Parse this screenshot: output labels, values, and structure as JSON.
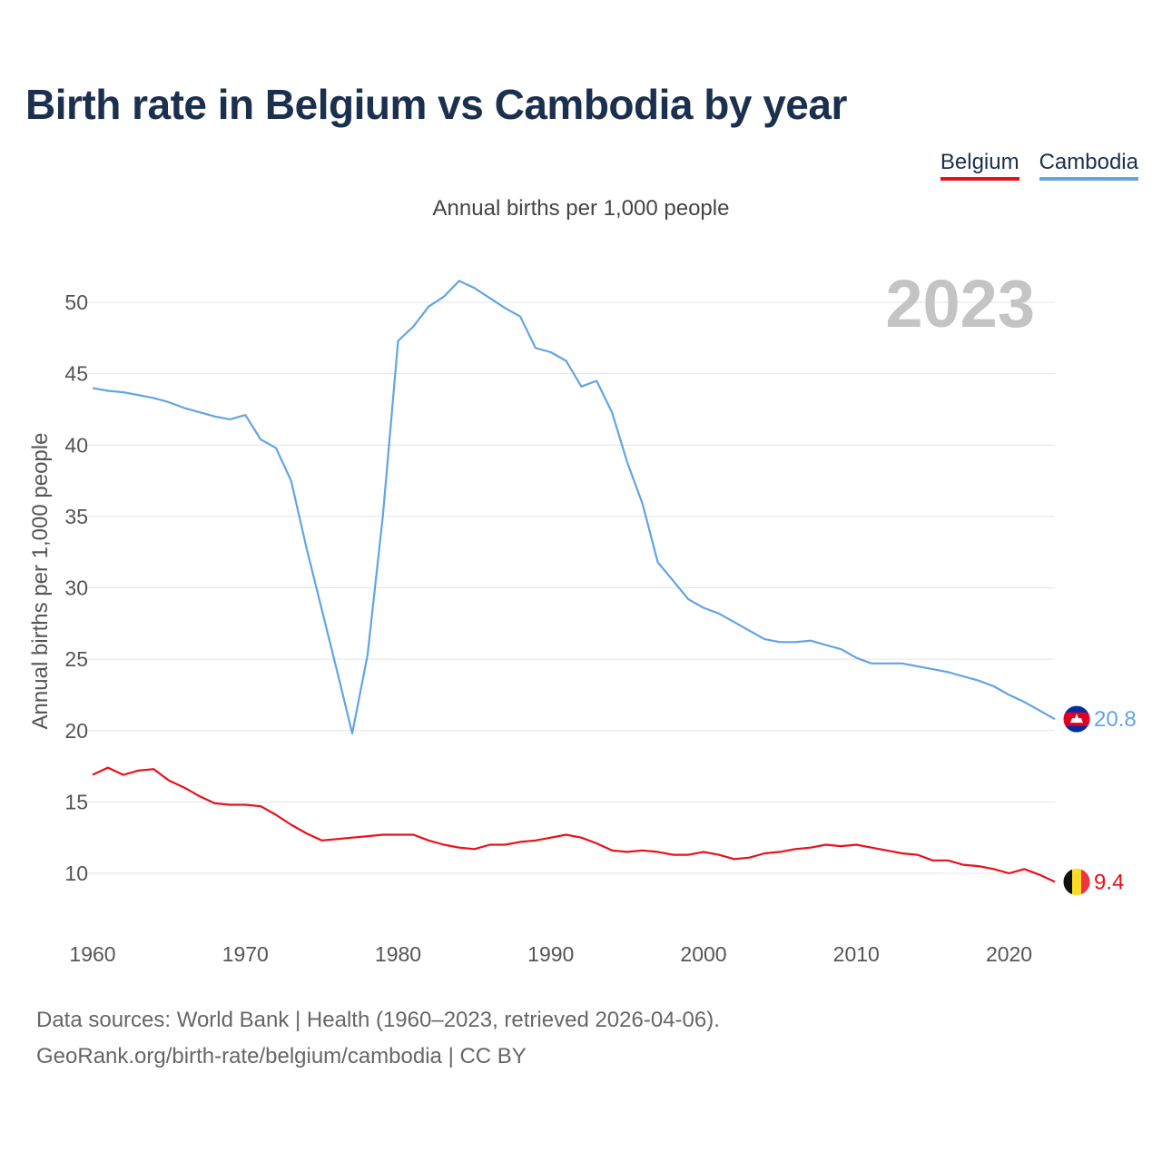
{
  "title": "Birth rate in Belgium vs Cambodia by year",
  "legend": {
    "belgium": "Belgium",
    "cambodia": "Cambodia"
  },
  "subtitle": "Annual births per 1,000 people",
  "year_label": "2023",
  "footer": {
    "line1": "Data sources: World Bank | Health (1960–2023, retrieved 2026-04-06).",
    "line2": "GeoRank.org/birth-rate/belgium/cambodia | CC BY"
  },
  "colors": {
    "belgium": "#e8101a",
    "cambodia": "#62a4e3",
    "title": "#1b2f4e",
    "year": "#c4c4c4"
  },
  "chart_data": {
    "type": "line",
    "ylabel": "Annual births per 1,000 people",
    "xlim": [
      1960,
      2023
    ],
    "ylim": [
      5,
      52.5
    ],
    "x_ticks": [
      "1960",
      "1970",
      "1980",
      "1990",
      "2000",
      "2010",
      "2020"
    ],
    "y_ticks": [
      "10",
      "15",
      "20",
      "25",
      "30",
      "35",
      "40",
      "45",
      "50"
    ],
    "x": [
      1960,
      1961,
      1962,
      1963,
      1964,
      1965,
      1966,
      1967,
      1968,
      1969,
      1970,
      1971,
      1972,
      1973,
      1974,
      1975,
      1976,
      1977,
      1978,
      1979,
      1980,
      1981,
      1982,
      1983,
      1984,
      1985,
      1986,
      1987,
      1988,
      1989,
      1990,
      1991,
      1992,
      1993,
      1994,
      1995,
      1996,
      1997,
      1998,
      1999,
      2000,
      2001,
      2002,
      2003,
      2004,
      2005,
      2006,
      2007,
      2008,
      2009,
      2010,
      2011,
      2012,
      2013,
      2014,
      2015,
      2016,
      2017,
      2018,
      2019,
      2020,
      2021,
      2022,
      2023
    ],
    "series": [
      {
        "name": "Belgium",
        "color": "#e8101a",
        "end_label": "9.4",
        "flag": "belgium-flag-icon",
        "values": [
          16.9,
          17.4,
          16.9,
          17.2,
          17.3,
          16.5,
          16.0,
          15.4,
          14.9,
          14.8,
          14.8,
          14.7,
          14.1,
          13.4,
          12.8,
          12.3,
          12.4,
          12.5,
          12.6,
          12.7,
          12.7,
          12.7,
          12.3,
          12.0,
          11.8,
          11.7,
          12.0,
          12.0,
          12.2,
          12.3,
          12.5,
          12.7,
          12.5,
          12.1,
          11.6,
          11.5,
          11.6,
          11.5,
          11.3,
          11.3,
          11.5,
          11.3,
          11.0,
          11.1,
          11.4,
          11.5,
          11.7,
          11.8,
          12.0,
          11.9,
          12.0,
          11.8,
          11.6,
          11.4,
          11.3,
          10.9,
          10.9,
          10.6,
          10.5,
          10.3,
          10.0,
          10.3,
          9.9,
          9.4
        ]
      },
      {
        "name": "Cambodia",
        "color": "#62a4e3",
        "end_label": "20.8",
        "flag": "cambodia-flag-icon",
        "values": [
          44.0,
          43.8,
          43.7,
          43.5,
          43.3,
          43.0,
          42.6,
          42.3,
          42.0,
          41.8,
          42.1,
          40.4,
          39.8,
          37.5,
          32.8,
          28.5,
          24.2,
          19.8,
          25.3,
          35.0,
          47.3,
          48.3,
          49.7,
          50.4,
          51.5,
          51.0,
          50.3,
          49.6,
          49.0,
          46.8,
          46.5,
          45.9,
          44.1,
          44.5,
          42.3,
          38.8,
          35.9,
          31.8,
          30.5,
          29.2,
          28.6,
          28.2,
          27.6,
          27.0,
          26.4,
          26.2,
          26.2,
          26.3,
          26.0,
          25.7,
          25.1,
          24.7,
          24.7,
          24.7,
          24.5,
          24.3,
          24.1,
          23.8,
          23.5,
          23.1,
          22.5,
          22.0,
          21.4,
          20.8
        ]
      }
    ]
  }
}
